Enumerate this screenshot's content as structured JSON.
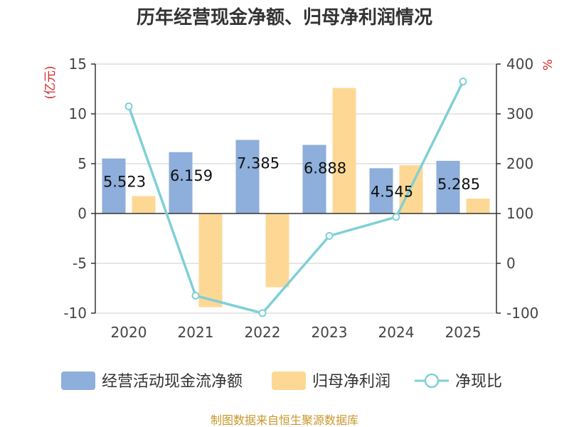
{
  "title": "历年经营现金净额、归母净利润情况",
  "source": "制图数据来自恒生聚源数据库",
  "colors": {
    "cash": "#8eaedb",
    "profit": "#fdd895",
    "ratio": "#7fd0d6",
    "unit": "#d62728",
    "grid": "#cccccc",
    "axis": "#333333"
  },
  "chart_data": {
    "type": "bar",
    "categories": [
      "2020",
      "2021",
      "2022",
      "2023",
      "2024",
      "2025"
    ],
    "series": [
      {
        "name": "经营活动现金流净额",
        "axis": "left",
        "kind": "bar",
        "values": [
          5.523,
          6.159,
          7.385,
          6.888,
          4.545,
          5.285
        ],
        "labels": [
          "5.523",
          "6.159",
          "7.385",
          "6.888",
          "4.545",
          "5.285"
        ]
      },
      {
        "name": "归母净利润",
        "axis": "left",
        "kind": "bar",
        "values": [
          1.75,
          -9.4,
          -7.4,
          12.6,
          4.85,
          1.5
        ]
      },
      {
        "name": "净现比",
        "axis": "right",
        "kind": "line",
        "values": [
          315,
          -65,
          -100,
          55,
          93,
          365
        ]
      }
    ],
    "left_axis": {
      "unit": "(亿元)",
      "min": -10,
      "max": 15,
      "ticks": [
        15,
        10,
        5,
        0,
        -5,
        -10
      ],
      "tick_labels": [
        "15",
        "10",
        "5",
        "0",
        "-5",
        "-10"
      ]
    },
    "right_axis": {
      "unit": "%",
      "min": -100,
      "max": 400,
      "ticks": [
        400,
        300,
        200,
        100,
        0,
        -100
      ],
      "tick_labels": [
        "400",
        "300",
        "200",
        "100",
        "0",
        "-100"
      ]
    },
    "legend": [
      "经营活动现金流净额",
      "归母净利润",
      "净现比"
    ],
    "grid": true,
    "legend_position": "bottom"
  }
}
